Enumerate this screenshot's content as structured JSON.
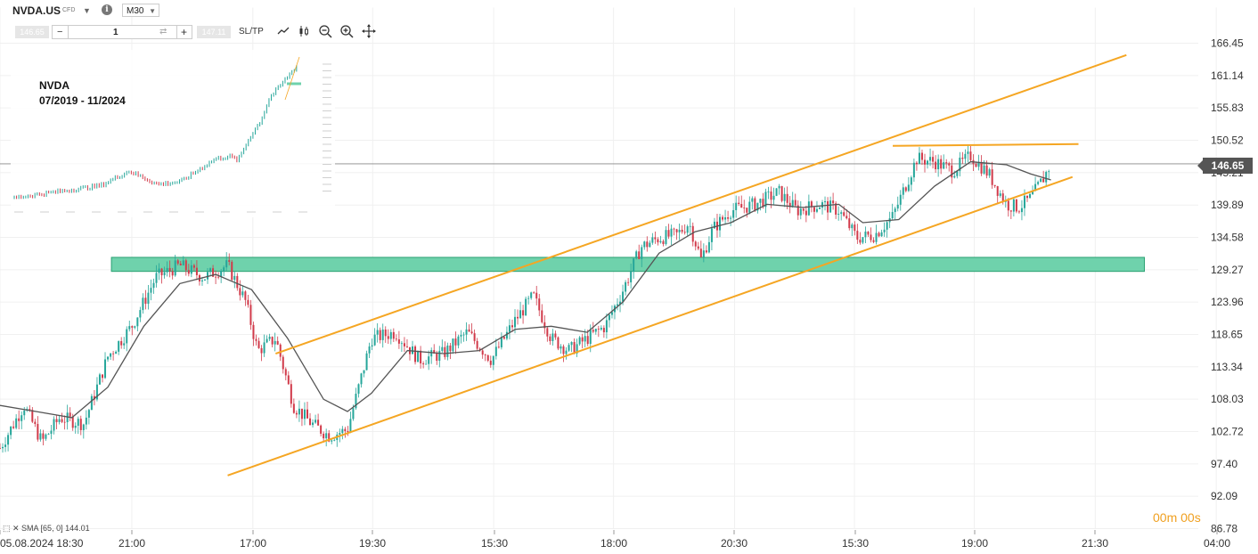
{
  "header": {
    "symbol": "NVDA.US",
    "symbol_type": "CFD",
    "timeframe": "M30",
    "bid": "146.65",
    "ask": "147.11",
    "quantity": "1",
    "sl_tp_label": "SL/TP"
  },
  "inset": {
    "title_line1": "NVDA",
    "title_line2": "07/2019 - 11/2024"
  },
  "indicator": {
    "legend": "SMA [65, 0] 144.01"
  },
  "countdown": "00m 00s",
  "current_price": "146.65",
  "colors": {
    "up": "#26a69a",
    "down": "#d13a4a",
    "sma": "#555555",
    "channel": "#f5a623",
    "zone_fill": "#6fd2ac",
    "zone_stroke": "#2aa072"
  },
  "chart_data": {
    "type": "candlestick",
    "x_labels": [
      "05.08.2024 18:30",
      "21:00",
      "17:00",
      "19:30",
      "15:30",
      "18:00",
      "20:30",
      "15:30",
      "19:00",
      "21:30",
      "04:00"
    ],
    "y_ticks": [
      166.45,
      161.14,
      155.83,
      150.52,
      145.21,
      139.89,
      134.58,
      129.27,
      123.96,
      118.65,
      113.34,
      108.03,
      102.72,
      97.4,
      92.09,
      86.78
    ],
    "ylim": [
      86.78,
      166.45
    ],
    "price_path": [
      [
        0,
        100
      ],
      [
        0.02,
        107
      ],
      [
        0.035,
        101
      ],
      [
        0.05,
        105
      ],
      [
        0.07,
        104
      ],
      [
        0.09,
        115
      ],
      [
        0.11,
        120
      ],
      [
        0.13,
        128
      ],
      [
        0.15,
        130
      ],
      [
        0.17,
        128
      ],
      [
        0.19,
        130
      ],
      [
        0.205,
        124
      ],
      [
        0.215,
        116
      ],
      [
        0.23,
        118
      ],
      [
        0.245,
        107
      ],
      [
        0.26,
        104
      ],
      [
        0.275,
        102
      ],
      [
        0.29,
        103
      ],
      [
        0.31,
        118
      ],
      [
        0.33,
        119
      ],
      [
        0.35,
        114.5
      ],
      [
        0.37,
        115.5
      ],
      [
        0.39,
        119
      ],
      [
        0.41,
        114.5
      ],
      [
        0.43,
        121
      ],
      [
        0.445,
        125
      ],
      [
        0.46,
        118
      ],
      [
        0.475,
        116
      ],
      [
        0.49,
        118
      ],
      [
        0.505,
        120
      ],
      [
        0.52,
        126
      ],
      [
        0.535,
        133
      ],
      [
        0.55,
        134.5
      ],
      [
        0.565,
        135
      ],
      [
        0.575,
        137
      ],
      [
        0.585,
        131
      ],
      [
        0.595,
        136
      ],
      [
        0.61,
        139
      ],
      [
        0.63,
        140
      ],
      [
        0.65,
        142
      ],
      [
        0.665,
        139
      ],
      [
        0.685,
        140
      ],
      [
        0.7,
        139
      ],
      [
        0.715,
        134.5
      ],
      [
        0.73,
        135
      ],
      [
        0.745,
        138
      ],
      [
        0.765,
        147.5
      ],
      [
        0.78,
        147
      ],
      [
        0.795,
        145.5
      ],
      [
        0.81,
        148
      ],
      [
        0.825,
        145
      ],
      [
        0.84,
        140
      ],
      [
        0.85,
        139.5
      ],
      [
        0.86,
        141
      ],
      [
        0.87,
        144
      ],
      [
        0.877,
        146.65
      ]
    ],
    "sma_path": [
      [
        0,
        107
      ],
      [
        0.03,
        106
      ],
      [
        0.06,
        105
      ],
      [
        0.09,
        110
      ],
      [
        0.12,
        120
      ],
      [
        0.15,
        127
      ],
      [
        0.18,
        128.5
      ],
      [
        0.21,
        126
      ],
      [
        0.24,
        118
      ],
      [
        0.27,
        108
      ],
      [
        0.29,
        106
      ],
      [
        0.31,
        109
      ],
      [
        0.34,
        116
      ],
      [
        0.37,
        115.5
      ],
      [
        0.4,
        116
      ],
      [
        0.43,
        119.5
      ],
      [
        0.46,
        120
      ],
      [
        0.49,
        119
      ],
      [
        0.52,
        124
      ],
      [
        0.55,
        132
      ],
      [
        0.58,
        135.5
      ],
      [
        0.61,
        137
      ],
      [
        0.64,
        140
      ],
      [
        0.67,
        139.5
      ],
      [
        0.7,
        140
      ],
      [
        0.72,
        137
      ],
      [
        0.75,
        137.5
      ],
      [
        0.78,
        143
      ],
      [
        0.81,
        147
      ],
      [
        0.84,
        146.5
      ],
      [
        0.86,
        145
      ],
      [
        0.877,
        144.01
      ]
    ],
    "sma": {
      "period": 65,
      "last": 144.01
    },
    "channel_upper": [
      [
        0.23,
        115.5
      ],
      [
        0.94,
        164.5
      ]
    ],
    "channel_lower": [
      [
        0.19,
        95.5
      ],
      [
        0.895,
        144.5
      ]
    ],
    "resistance_line": [
      [
        0.745,
        149.6
      ],
      [
        0.9,
        149.9
      ]
    ],
    "support_zone": {
      "from": 129.0,
      "to": 131.3,
      "x_start": 0.093,
      "x_end": 0.955
    },
    "current_price_line": 146.65
  }
}
